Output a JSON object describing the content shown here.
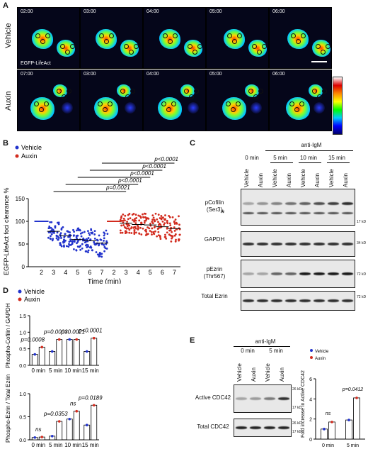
{
  "panels": {
    "A": "A",
    "B": "B",
    "C": "C",
    "D": "D",
    "E": "E"
  },
  "panelA": {
    "row_labels": [
      "Vehicle",
      "Auxin"
    ],
    "times_row1": [
      "02:00",
      "03:00",
      "04:00",
      "05:00",
      "06:00"
    ],
    "times_row2": [
      "07:00",
      "03:00",
      "04:00",
      "05:00",
      "06:00"
    ],
    "marker": "EGFP-LifeAct"
  },
  "panelB": {
    "legend": [
      "Vehicle",
      "Auxin"
    ],
    "ylabel": "EGFP-LifeAct foci clearance %",
    "xlabel": "Time (min)",
    "pvalues": [
      "p<0.0001",
      "p<0.0001",
      "p<0.0001",
      "p<0.0001",
      "p=0.0021"
    ],
    "colors": {
      "vehicle": "#2233cc",
      "auxin": "#d22b1e"
    }
  },
  "panelC": {
    "treatment": "anti-IgM",
    "times": [
      "0 min",
      "5 min",
      "10 min",
      "15 min"
    ],
    "lanes": [
      "Vehicle",
      "Auxin",
      "Vehicle",
      "Auxin",
      "Vehicle",
      "Auxin",
      "Vehicle",
      "Auxin"
    ],
    "blots": [
      "pCofilin\n(Ser3)",
      "GAPDH",
      "pEzrin\n(Thr567)",
      "Total Ezrin"
    ],
    "markers": [
      "17 kD",
      "34 kD",
      "72 kD",
      "72 kD"
    ],
    "asterisk": "*"
  },
  "panelE": {
    "treatment": "anti-IgM",
    "times": [
      "0 min",
      "5 min"
    ],
    "lanes": [
      "Vehicle",
      "Auxin",
      "Vehicle",
      "Auxin"
    ],
    "blots": [
      "Active CDC42",
      "Total CDC42"
    ],
    "markers": [
      "26 kD",
      "17 kD",
      "26 kD",
      "17 kD"
    ]
  },
  "chart_data": [
    {
      "type": "scatter",
      "ylabel": "EGFP-LifeAct foci clearance %",
      "xlabel": "Time (min)",
      "ylim": [
        0,
        150
      ],
      "yticks": [
        0,
        50,
        100,
        150
      ],
      "categories": [
        "2",
        "3",
        "4",
        "5",
        "6",
        "7",
        "2",
        "3",
        "4",
        "5",
        "6",
        "7"
      ],
      "series": [
        {
          "name": "Vehicle",
          "x": [
            "2",
            "3",
            "4",
            "5",
            "6",
            "7"
          ],
          "means": [
            100,
            78,
            68,
            60,
            57,
            52
          ]
        },
        {
          "name": "Auxin",
          "x": [
            "2",
            "3",
            "4",
            "5",
            "6",
            "7"
          ],
          "means": [
            100,
            96,
            93,
            92,
            88,
            84
          ]
        }
      ]
    },
    {
      "type": "bar",
      "ylabel": "Phospho-Cofilin / GAPDH",
      "ylim": [
        0,
        1.5
      ],
      "yticks": [
        0.0,
        0.5,
        1.0,
        1.5
      ],
      "categories": [
        "0 min",
        "5 min",
        "10 min",
        "15 min"
      ],
      "series": [
        {
          "name": "Vehicle",
          "values": [
            0.33,
            0.42,
            0.78,
            0.42
          ]
        },
        {
          "name": "Auxin",
          "values": [
            0.55,
            0.78,
            0.78,
            0.82
          ]
        }
      ],
      "annotations": [
        "p=0.0008",
        "p=0.0003",
        "p=0.0021",
        "p<0.0001"
      ]
    },
    {
      "type": "bar",
      "ylabel": "Phospho-Ezrin / Total Ezrin",
      "ylim": [
        0,
        1.0
      ],
      "yticks": [
        0.0,
        0.5,
        1.0
      ],
      "categories": [
        "0 min",
        "5 min",
        "10 min",
        "15 min"
      ],
      "series": [
        {
          "name": "Vehicle",
          "values": [
            0.05,
            0.08,
            0.45,
            0.32
          ]
        },
        {
          "name": "Auxin",
          "values": [
            0.06,
            0.4,
            0.62,
            0.75
          ]
        }
      ],
      "annotations": [
        "ns",
        "p=0.0353",
        "ns",
        "p=0.0189"
      ]
    },
    {
      "type": "bar",
      "ylabel": "Fold increase in Active CDC42",
      "ylim": [
        0,
        6
      ],
      "yticks": [
        0,
        2,
        4,
        6
      ],
      "categories": [
        "0 min",
        "5 min"
      ],
      "series": [
        {
          "name": "Vehicle",
          "values": [
            1.0,
            1.9
          ]
        },
        {
          "name": "Auxin",
          "values": [
            1.7,
            4.1
          ]
        }
      ],
      "annotations": [
        "ns",
        "p=0.0412"
      ]
    }
  ]
}
